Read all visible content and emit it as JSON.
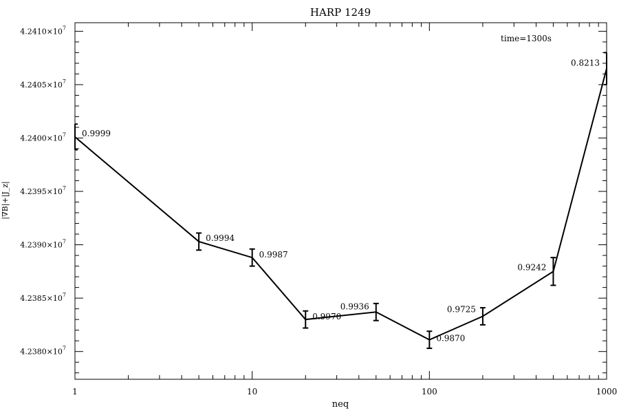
{
  "chart_data": {
    "type": "line",
    "title": "HARP 1249",
    "xlabel": "neq",
    "ylabel": "|∇B|+|J_z|",
    "annotation": "time=1300s",
    "x_scale": "log",
    "xlim": [
      1,
      1000
    ],
    "ylim": [
      42377400,
      42410800
    ],
    "x_ticks": [
      {
        "value": 1,
        "label": "1"
      },
      {
        "value": 10,
        "label": "10"
      },
      {
        "value": 100,
        "label": "100"
      },
      {
        "value": 1000,
        "label": "1000"
      }
    ],
    "y_ticks": [
      {
        "value": 42380000,
        "mantissa": "4.2380×10",
        "exp": "7"
      },
      {
        "value": 42385000,
        "mantissa": "4.2385×10",
        "exp": "7"
      },
      {
        "value": 42390000,
        "mantissa": "4.2390×10",
        "exp": "7"
      },
      {
        "value": 42395000,
        "mantissa": "4.2395×10",
        "exp": "7"
      },
      {
        "value": 42400000,
        "mantissa": "4.2400×10",
        "exp": "7"
      },
      {
        "value": 42405000,
        "mantissa": "4.2405×10",
        "exp": "7"
      },
      {
        "value": 42410000,
        "mantissa": "4.2410×10",
        "exp": "7"
      }
    ],
    "grid": false,
    "series": [
      {
        "points": [
          {
            "x": 1,
            "y": 42400100,
            "err": 1200,
            "label": "0.9999"
          },
          {
            "x": 5,
            "y": 42390300,
            "err": 800,
            "label": "0.9994"
          },
          {
            "x": 10,
            "y": 42388800,
            "err": 800,
            "label": "0.9987"
          },
          {
            "x": 20,
            "y": 42383000,
            "err": 800,
            "label": "0.9970"
          },
          {
            "x": 50,
            "y": 42383700,
            "err": 800,
            "label": "0.9936"
          },
          {
            "x": 100,
            "y": 42381100,
            "err": 800,
            "label": "0.9870"
          },
          {
            "x": 200,
            "y": 42383300,
            "err": 800,
            "label": "0.9725"
          },
          {
            "x": 500,
            "y": 42387500,
            "err": 1300,
            "label": "0.9242"
          },
          {
            "x": 1000,
            "y": 42406500,
            "err": 1500,
            "label": "0.8213"
          }
        ]
      }
    ]
  }
}
